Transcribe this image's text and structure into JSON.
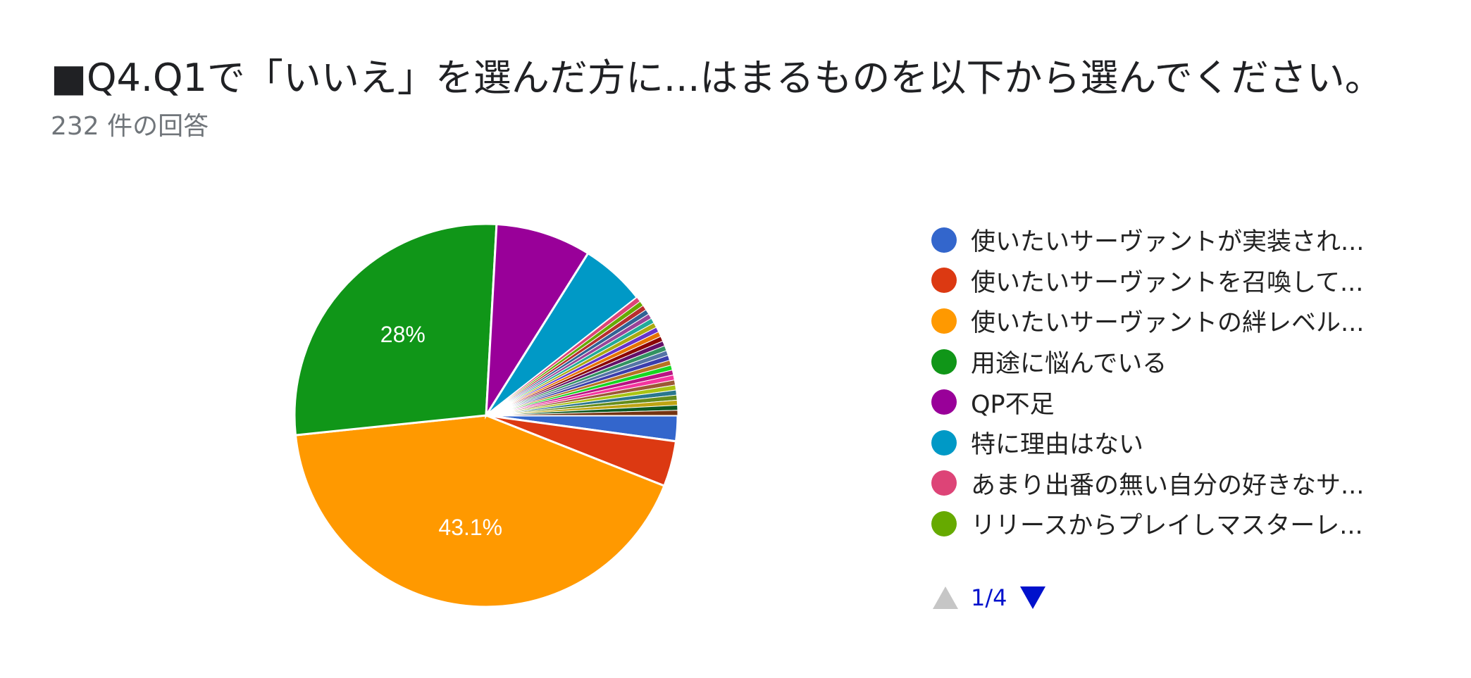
{
  "header": {
    "title": "■Q4.Q1で「いいえ」を選んだ方に...はまるものを以下から選んでください。",
    "response_count": "232 件の回答"
  },
  "chart_data": {
    "type": "pie",
    "title": "■Q4.Q1で「いいえ」を選んだ方に...はまるものを以下から選んでください。",
    "slices": [
      {
        "label": "使いたいサーヴァントが実装され...",
        "value": 2.2,
        "color": "#3366cc"
      },
      {
        "label": "使いたいサーヴァントを召喚して...",
        "value": 3.9,
        "color": "#dc3912"
      },
      {
        "label": "使いたいサーヴァントの絆レベル...",
        "value": 43.1,
        "color": "#ff9900",
        "display_label": "43.1%"
      },
      {
        "label": "用途に悩んでいる",
        "value": 28,
        "color": "#109618",
        "display_label": "28%"
      },
      {
        "label": "QP不足",
        "value": 8.2,
        "color": "#990099"
      },
      {
        "label": "特に理由はない",
        "value": 5.6,
        "color": "#0099c6"
      },
      {
        "label": "あまり出番の無い自分の好きなサ...",
        "value": 0.43,
        "color": "#dd4477"
      },
      {
        "label": "リリースからプレイしマスターレ...",
        "value": 0.43,
        "color": "#66aa00"
      },
      {
        "value": 0.43,
        "color": "#b82e2e"
      },
      {
        "value": 0.43,
        "color": "#316395"
      },
      {
        "value": 0.43,
        "color": "#994499"
      },
      {
        "value": 0.43,
        "color": "#22aa99"
      },
      {
        "value": 0.43,
        "color": "#aaaa11"
      },
      {
        "value": 0.43,
        "color": "#6633cc"
      },
      {
        "value": 0.43,
        "color": "#e67300"
      },
      {
        "value": 0.43,
        "color": "#8b0707"
      },
      {
        "value": 0.43,
        "color": "#651067"
      },
      {
        "value": 0.43,
        "color": "#329262"
      },
      {
        "value": 0.43,
        "color": "#5574a6"
      },
      {
        "value": 0.43,
        "color": "#3b3eac"
      },
      {
        "value": 0.43,
        "color": "#b77322"
      },
      {
        "value": 0.43,
        "color": "#16d620"
      },
      {
        "value": 0.43,
        "color": "#b91383"
      },
      {
        "value": 0.43,
        "color": "#f4359e"
      },
      {
        "value": 0.43,
        "color": "#9c5935"
      },
      {
        "value": 0.43,
        "color": "#a9c413"
      },
      {
        "value": 0.43,
        "color": "#2a778d"
      },
      {
        "value": 0.43,
        "color": "#668d1c"
      },
      {
        "value": 0.43,
        "color": "#bea413"
      },
      {
        "value": 0.43,
        "color": "#0c5922"
      },
      {
        "value": 0.43,
        "color": "#743411"
      }
    ],
    "legend_position": "right",
    "legend_page": "1/4"
  },
  "legend": {
    "items": [
      {
        "label": "使いたいサーヴァントが実装され...",
        "color": "#3366cc"
      },
      {
        "label": "使いたいサーヴァントを召喚して...",
        "color": "#dc3912"
      },
      {
        "label": "使いたいサーヴァントの絆レベル...",
        "color": "#ff9900"
      },
      {
        "label": "用途に悩んでいる",
        "color": "#109618"
      },
      {
        "label": "QP不足",
        "color": "#990099"
      },
      {
        "label": "特に理由はない",
        "color": "#0099c6"
      },
      {
        "label": "あまり出番の無い自分の好きなサ...",
        "color": "#dd4477"
      },
      {
        "label": "リリースからプレイしマスターレ...",
        "color": "#66aa00"
      }
    ],
    "page_indicator": "1/4"
  }
}
